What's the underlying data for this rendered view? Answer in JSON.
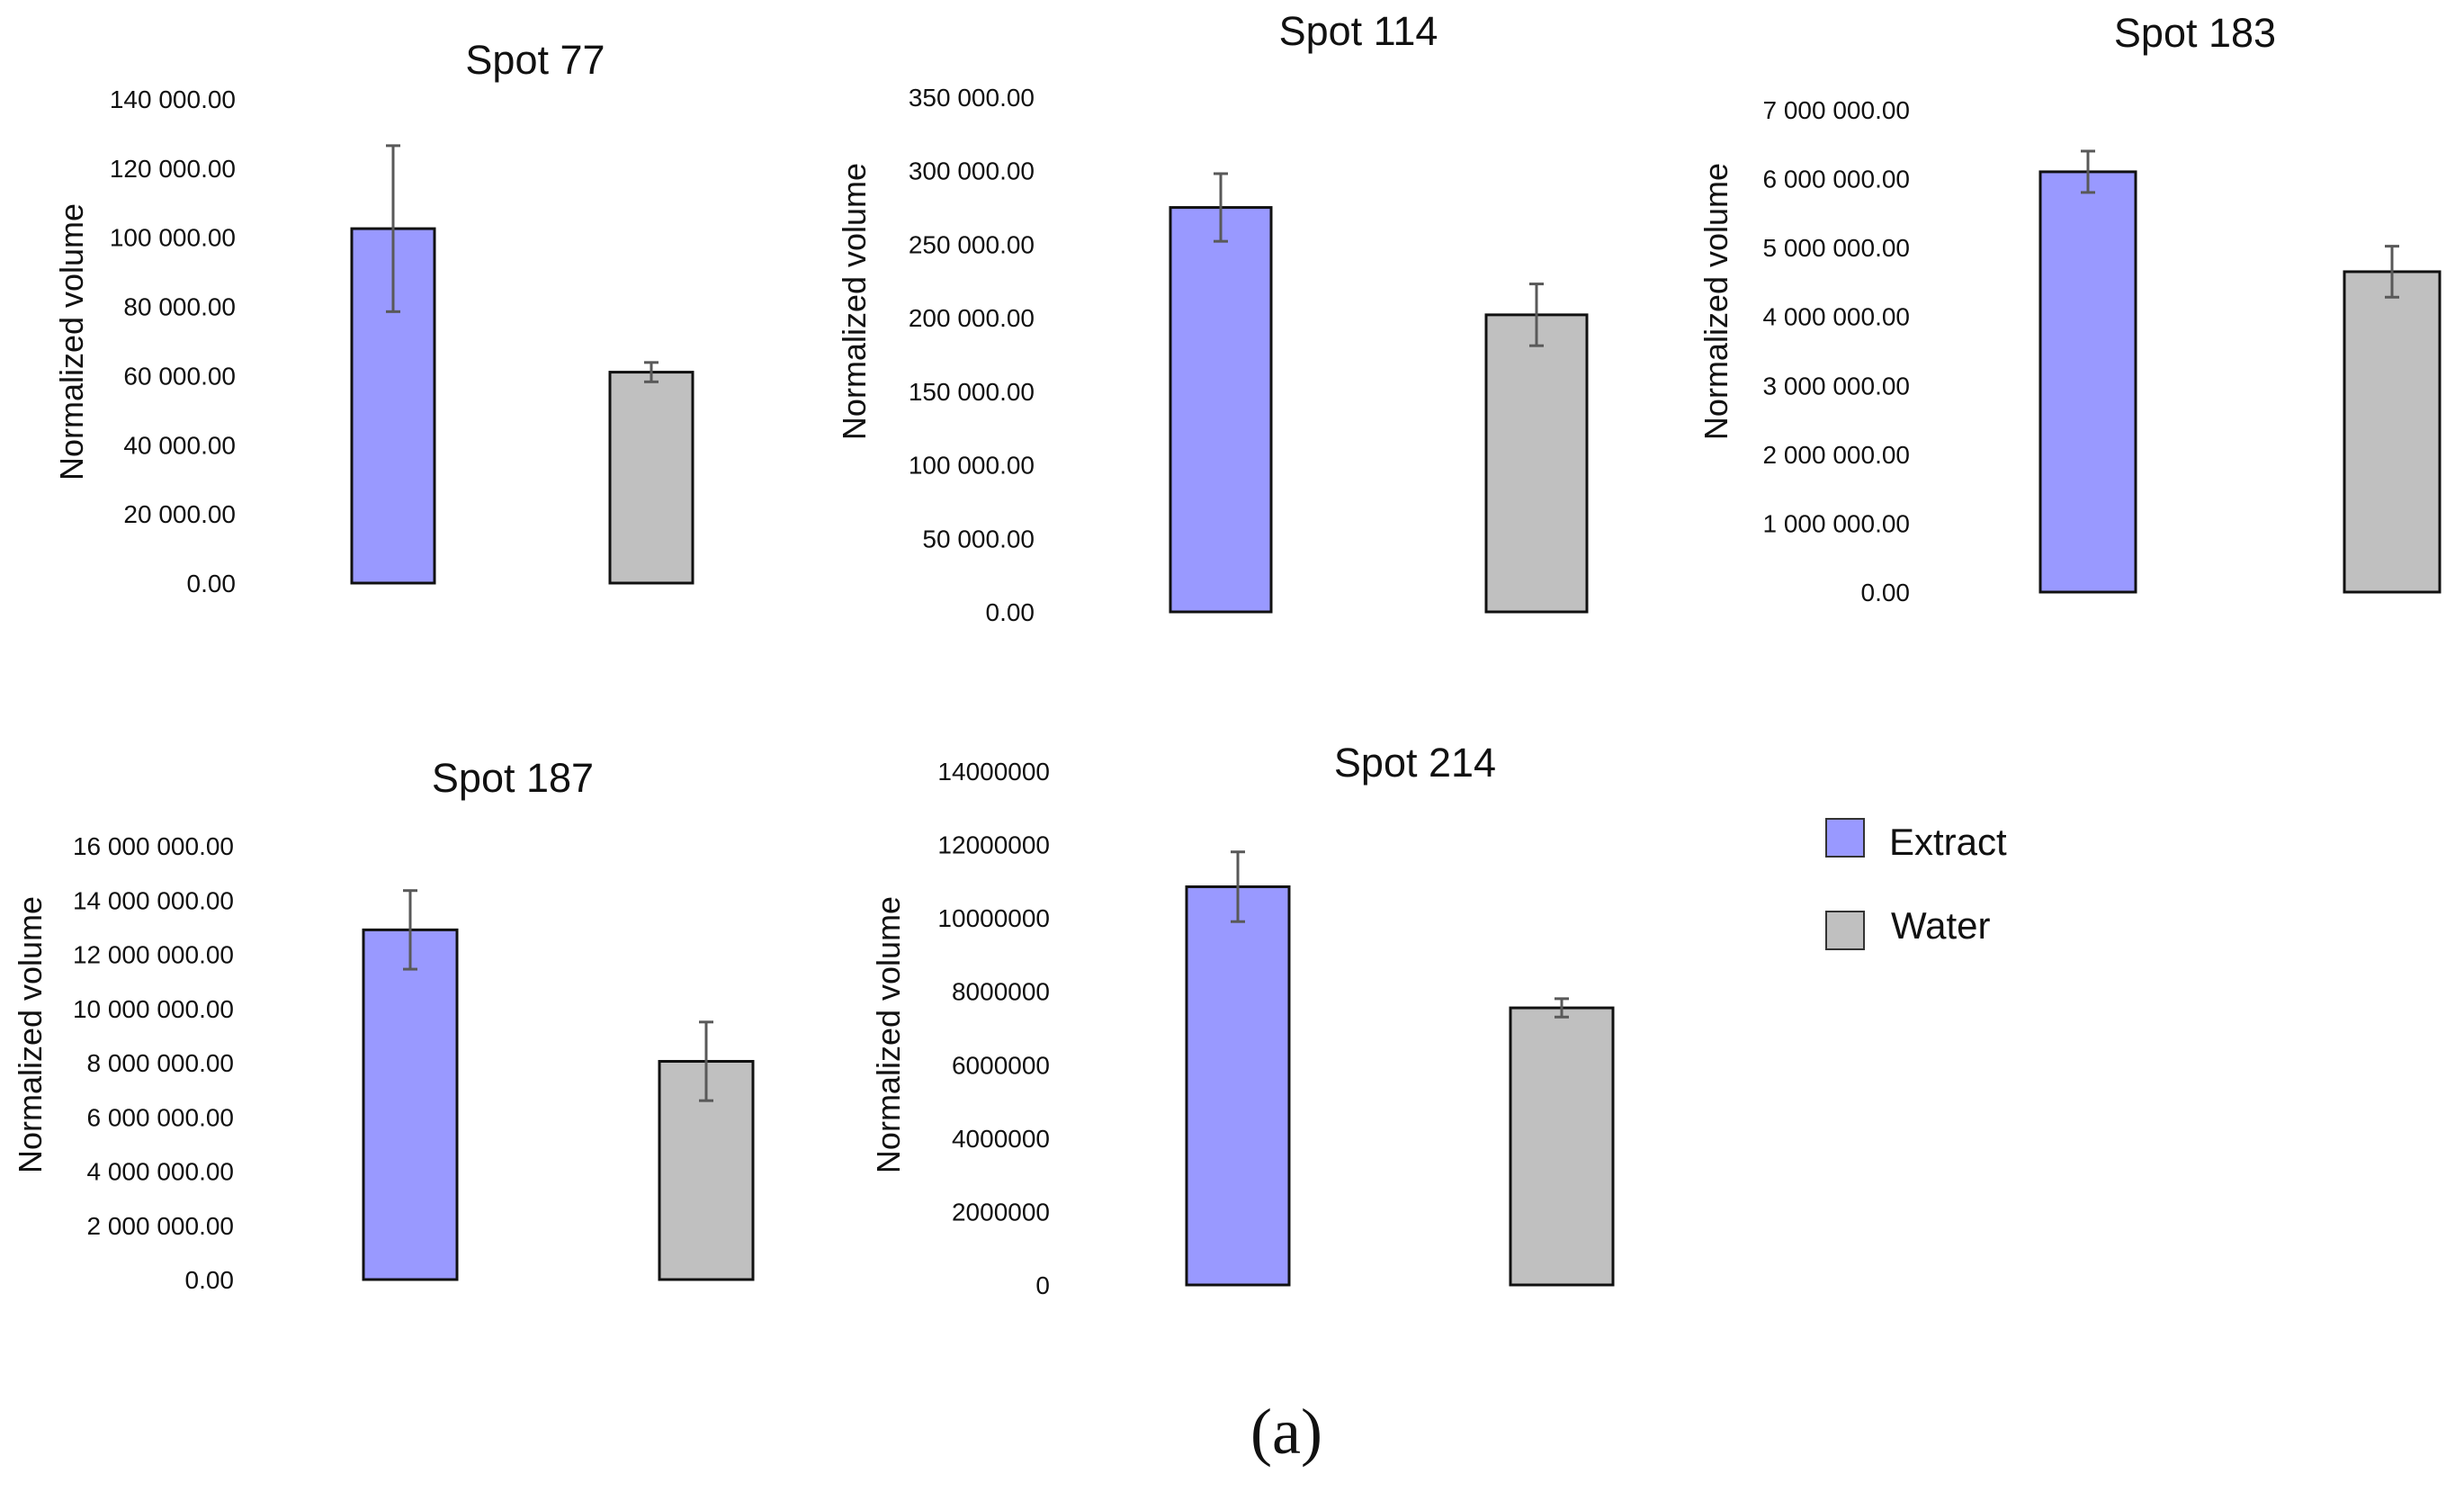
{
  "colors": {
    "extract": "#9999ff",
    "water": "#c0c0c0",
    "bar_stroke": "#111111",
    "error_bar": "#595959"
  },
  "legend": {
    "items": [
      {
        "name": "Extract",
        "color": "#9999ff"
      },
      {
        "name": "Water",
        "color": "#c0c0c0"
      }
    ]
  },
  "caption": "(a)",
  "chart_data": [
    {
      "type": "bar",
      "title": "Spot 77",
      "ylabel": "Normalized volume",
      "xlabel": "",
      "ylim": [
        0,
        140000
      ],
      "yticks": [
        "0.00",
        "20 000.00",
        "40 000.00",
        "60 000.00",
        "80 000.00",
        "100 000.00",
        "120 000.00",
        "140 000.00"
      ],
      "categories": [
        "Extract",
        "Water"
      ],
      "values": [
        102500,
        61000
      ],
      "errors": [
        24000,
        2800
      ]
    },
    {
      "type": "bar",
      "title": "Spot 114",
      "ylabel": "Normalized volume",
      "xlabel": "",
      "ylim": [
        0,
        350000
      ],
      "yticks": [
        "0.00",
        "50 000.00",
        "100 000.00",
        "150 000.00",
        "200 000.00",
        "250 000.00",
        "300 000.00",
        "350 000.00"
      ],
      "categories": [
        "Extract",
        "Water"
      ],
      "values": [
        275000,
        202000
      ],
      "errors": [
        23000,
        21000
      ]
    },
    {
      "type": "bar",
      "title": "Spot 183",
      "ylabel": "Normalized volume",
      "xlabel": "",
      "ylim": [
        0,
        7000000
      ],
      "yticks": [
        "0.00",
        "1 000 000.00",
        "2 000 000.00",
        "3 000 000.00",
        "4 000 000.00",
        "5 000 000.00",
        "6 000 000.00",
        "7 000 000.00"
      ],
      "categories": [
        "Extract",
        "Water"
      ],
      "values": [
        6100000,
        4650000
      ],
      "errors": [
        300000,
        370000
      ]
    },
    {
      "type": "bar",
      "title": "Spot 187",
      "ylabel": "Normalized volume",
      "xlabel": "",
      "ylim": [
        0,
        16000000
      ],
      "yticks": [
        "0.00",
        "2 000 000.00",
        "4 000 000.00",
        "6 000 000.00",
        "8 000 000.00",
        "10 000 000.00",
        "12 000 000.00",
        "14 000 000.00",
        "16 000 000.00"
      ],
      "categories": [
        "Extract",
        "Water"
      ],
      "values": [
        12900000,
        8050000
      ],
      "errors": [
        1450000,
        1450000
      ]
    },
    {
      "type": "bar",
      "title": "Spot 214",
      "ylabel": "Normalized volume",
      "xlabel": "",
      "ylim": [
        0,
        14000000
      ],
      "yticks": [
        "0",
        "2000000",
        "4000000",
        "6000000",
        "8000000",
        "10000000",
        "12000000",
        "14000000"
      ],
      "categories": [
        "Extract",
        "Water"
      ],
      "values": [
        10850000,
        7550000
      ],
      "errors": [
        950000,
        250000
      ]
    }
  ]
}
